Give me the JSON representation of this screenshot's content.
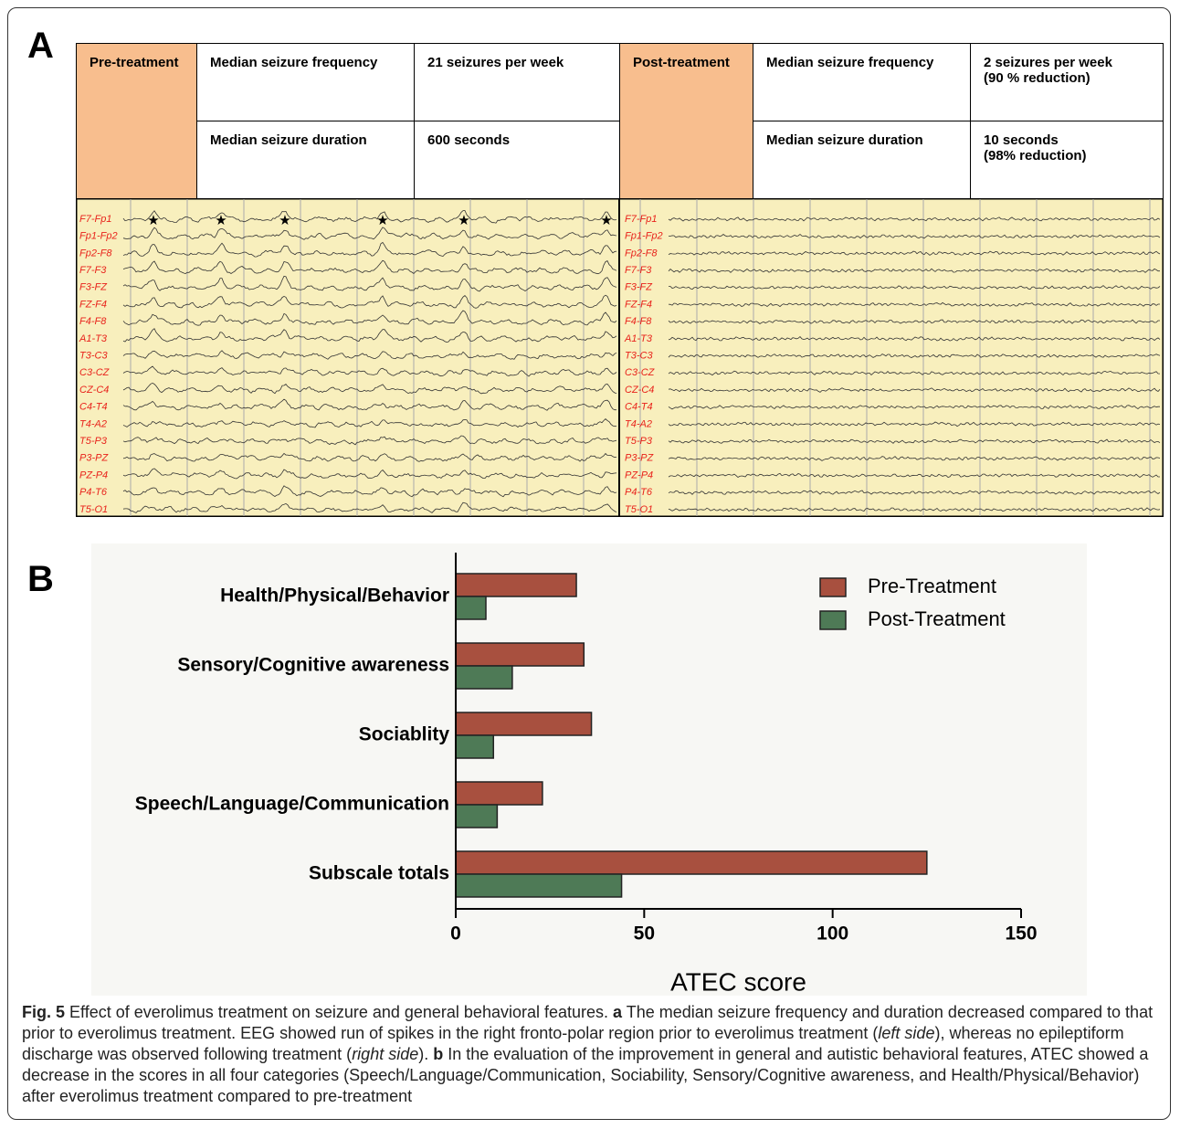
{
  "panel_a": {
    "label": "A",
    "table": {
      "pre": {
        "heading": "Pre-treatment",
        "rows": [
          [
            "Median seizure frequency",
            "21 seizures per week"
          ],
          [
            "Median seizure duration",
            "600 seconds"
          ]
        ]
      },
      "post": {
        "heading": "Post-treatment",
        "rows": [
          [
            "Median seizure frequency",
            "2 seizures per week\n(90 % reduction)"
          ],
          [
            "Median seizure duration",
            "10 seconds\n(98% reduction)"
          ]
        ]
      }
    },
    "eeg": {
      "pre_channels": [
        "F7-Fp1",
        "Fp1-Fp2",
        "Fp2-F8",
        "F7-F3",
        "F3-FZ",
        "FZ-F4",
        "F4-F8",
        "A1-T3",
        "T3-C3",
        "C3-CZ",
        "CZ-C4",
        "C4-T4",
        "T4-A2",
        "T5-P3",
        "P3-PZ",
        "PZ-P4",
        "P4-T6",
        "T5-O1"
      ],
      "post_channels": [
        "F7-Fp1",
        "Fp1-Fp2",
        "Fp2-F8",
        "F7-F3",
        "F3-FZ",
        "FZ-F4",
        "F4-F8",
        "A1-T3",
        "T3-C3",
        "C3-CZ",
        "CZ-C4",
        "C4-T4",
        "T4-A2",
        "T5-P3",
        "P3-PZ",
        "PZ-P4",
        "P4-T6",
        "T5-O1"
      ]
    }
  },
  "panel_b": {
    "label": "B"
  },
  "chart_data": {
    "type": "bar",
    "orientation": "horizontal",
    "categories": [
      "Health/Physical/Behavior",
      "Sensory/Cognitive awareness",
      "Sociablity",
      "Speech/Language/Communication",
      "Subscale totals"
    ],
    "series": [
      {
        "name": "Pre-Treatment",
        "color": "#a8503f",
        "values": [
          32,
          34,
          36,
          23,
          125
        ]
      },
      {
        "name": "Post-Treatment",
        "color": "#4e7a56",
        "values": [
          8,
          15,
          10,
          11,
          44
        ]
      }
    ],
    "xlim": [
      0,
      150
    ],
    "xticks": [
      0,
      50,
      100,
      150
    ],
    "xlabel": "ATEC score",
    "legend": "upper right",
    "grid": false
  },
  "caption": {
    "label": "Fig. 5",
    "parts": [
      " Effect of everolimus treatment on seizure and general behavioral features. ",
      "a",
      " The median seizure frequency and duration decreased compared to that prior to everolimus treatment. EEG showed run of spikes in the right fronto-polar region prior to everolimus treatment (",
      "left side",
      "), whereas no epileptiform discharge was observed following treatment (",
      "right side",
      "). ",
      "b",
      " In the evaluation of the improvement in general and autistic behavioral features, ATEC showed a decrease in the scores in all four categories (Speech/Language/Communication, Sociability, Sensory/Cognitive awareness, and Health/Physical/Behavior) after everolimus treatment compared to pre-treatment"
    ]
  }
}
